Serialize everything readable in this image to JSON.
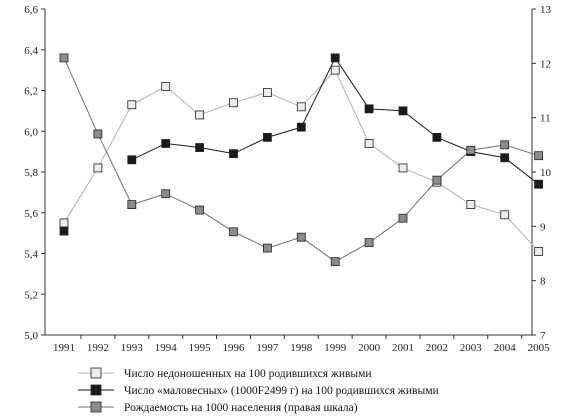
{
  "chart_data": {
    "type": "line",
    "categories": [
      "1991",
      "1992",
      "1993",
      "1994",
      "1995",
      "1996",
      "1997",
      "1998",
      "1999",
      "2000",
      "2001",
      "2002",
      "2003",
      "2004",
      "2005"
    ],
    "left_axis": {
      "ylim": [
        5.0,
        6.6
      ],
      "ticks": [
        "5,0",
        "5,2",
        "5,4",
        "5,6",
        "5,8",
        "6,0",
        "6,2",
        "6,4",
        "6,6"
      ]
    },
    "right_axis": {
      "ylim": [
        7,
        13
      ],
      "ticks": [
        "7",
        "8",
        "9",
        "10",
        "11",
        "12",
        "13"
      ]
    },
    "grid": false,
    "legend_position": "bottom",
    "series": [
      {
        "name": "Число недоношенных на 100 родившихся живыми",
        "axis": "left",
        "marker": "square-open",
        "fill": "#ececec",
        "line": "#b0b0b0",
        "values": [
          5.55,
          5.82,
          6.13,
          6.22,
          6.08,
          6.14,
          6.19,
          6.12,
          6.3,
          5.94,
          5.82,
          5.75,
          5.64,
          5.59,
          5.41
        ]
      },
      {
        "name": "Число «маловесных» (1000F2499 г) на 100 родившихся живыми",
        "axis": "left",
        "marker": "square-filled",
        "fill": "#1a1a1a",
        "line": "#1a1a1a",
        "values": [
          5.51,
          null,
          5.86,
          5.94,
          5.92,
          5.89,
          5.97,
          6.02,
          6.36,
          6.11,
          6.1,
          5.97,
          5.9,
          5.87,
          5.74
        ]
      },
      {
        "name": "Рождаемость на 1000 населения (правая шкала)",
        "axis": "right",
        "marker": "square-gray",
        "fill": "#8c8c8c",
        "line": "#6e6e6e",
        "values": [
          12.1,
          10.7,
          9.4,
          9.6,
          9.3,
          8.9,
          8.6,
          8.8,
          8.35,
          8.7,
          9.15,
          9.85,
          10.4,
          10.5,
          10.3
        ]
      }
    ]
  }
}
